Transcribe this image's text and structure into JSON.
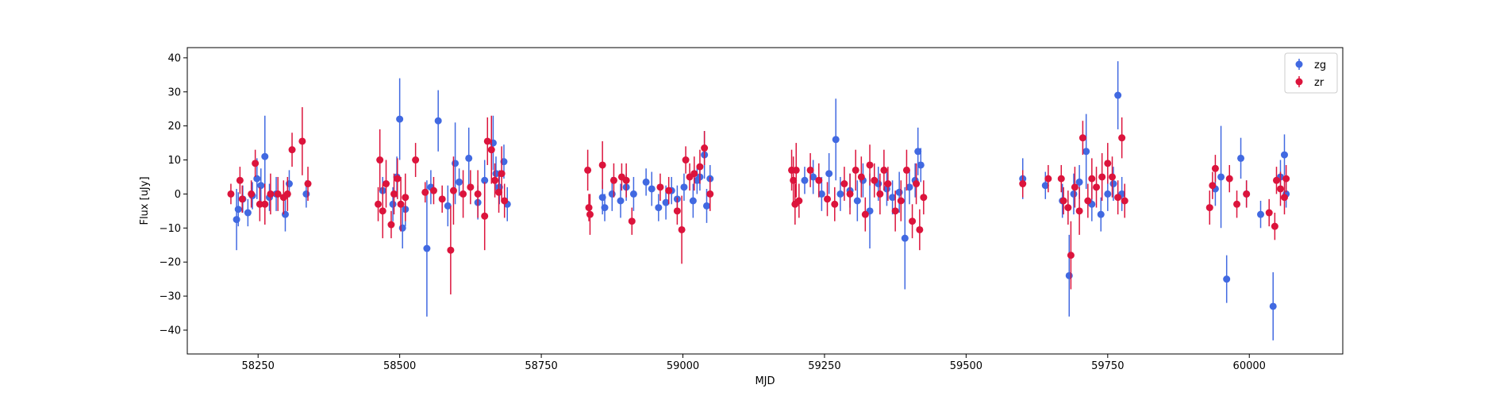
{
  "chart_data": {
    "type": "scatter",
    "title": "",
    "xlabel": "MJD",
    "ylabel": "Flux [uJy]",
    "xlim": [
      58125,
      60165
    ],
    "ylim": [
      -47,
      43
    ],
    "xticks": [
      58250,
      58500,
      58750,
      59000,
      59250,
      59500,
      59750,
      60000
    ],
    "yticks": [
      -40,
      -30,
      -20,
      -10,
      0,
      10,
      20,
      30,
      40
    ],
    "legend": {
      "position": "top-right"
    },
    "grid": false,
    "colors": {
      "zg": "#4169E1",
      "zr": "#DC143C"
    },
    "series": [
      {
        "name": "zg",
        "color": "#4169E1",
        "points": [
          [
            58212,
            -7.5,
            9
          ],
          [
            58215,
            -4.5,
            5
          ],
          [
            58223,
            -1.5,
            4
          ],
          [
            58232,
            -5.5,
            4
          ],
          [
            58240,
            -0.5,
            4
          ],
          [
            58248,
            4.5,
            6
          ],
          [
            58255,
            2.5,
            5
          ],
          [
            58262,
            11,
            12
          ],
          [
            58270,
            -1,
            4
          ],
          [
            58282,
            0,
            5
          ],
          [
            58298,
            -6,
            5
          ],
          [
            58305,
            3,
            4
          ],
          [
            58335,
            0,
            4
          ],
          [
            58470,
            1,
            4
          ],
          [
            58488,
            -3,
            5
          ],
          [
            58495,
            5,
            6
          ],
          [
            58500,
            22,
            12
          ],
          [
            58505,
            -10,
            6
          ],
          [
            58510,
            -4.5,
            5
          ],
          [
            58548,
            -16,
            20
          ],
          [
            58555,
            2,
            5
          ],
          [
            58568,
            21.5,
            9
          ],
          [
            58585,
            -3.5,
            6
          ],
          [
            58598,
            9,
            12
          ],
          [
            58605,
            3.5,
            4
          ],
          [
            58622,
            10.5,
            9
          ],
          [
            58638,
            -2.5,
            5
          ],
          [
            58650,
            4,
            6
          ],
          [
            58665,
            15,
            8
          ],
          [
            58670,
            6,
            5
          ],
          [
            58676,
            2,
            5
          ],
          [
            58684,
            9.5,
            5
          ],
          [
            58690,
            -3,
            5
          ],
          [
            58858,
            -1,
            5
          ],
          [
            58862,
            -4,
            4
          ],
          [
            58875,
            0,
            5
          ],
          [
            58890,
            -2,
            5
          ],
          [
            58900,
            2,
            4
          ],
          [
            58913,
            0,
            5
          ],
          [
            58935,
            3.5,
            4
          ],
          [
            58945,
            1.5,
            5
          ],
          [
            58957,
            -4,
            4
          ],
          [
            58970,
            -2.5,
            5
          ],
          [
            58980,
            1,
            4
          ],
          [
            58990,
            -1.5,
            4
          ],
          [
            59002,
            2,
            4
          ],
          [
            59018,
            -2,
            5
          ],
          [
            59025,
            4,
            4
          ],
          [
            59030,
            5,
            4
          ],
          [
            59038,
            11.5,
            7
          ],
          [
            59042,
            -3.5,
            5
          ],
          [
            59048,
            4.5,
            4
          ],
          [
            59215,
            4,
            4
          ],
          [
            59230,
            5,
            5
          ],
          [
            59245,
            0,
            5
          ],
          [
            59258,
            6,
            6
          ],
          [
            59270,
            16,
            12
          ],
          [
            59278,
            0,
            5
          ],
          [
            59295,
            1,
            5
          ],
          [
            59308,
            -2,
            6
          ],
          [
            59318,
            4,
            5
          ],
          [
            59330,
            -5,
            11
          ],
          [
            59345,
            3,
            5
          ],
          [
            59360,
            1.5,
            5
          ],
          [
            59370,
            -1,
            5
          ],
          [
            59382,
            0.5,
            6
          ],
          [
            59392,
            -13,
            15
          ],
          [
            59400,
            2,
            5
          ],
          [
            59410,
            4,
            5
          ],
          [
            59415,
            12.5,
            7
          ],
          [
            59420,
            8.5,
            5
          ],
          [
            59600,
            4.5,
            6
          ],
          [
            59640,
            2.5,
            4
          ],
          [
            59670,
            -2,
            5
          ],
          [
            59682,
            -24,
            12
          ],
          [
            59690,
            0,
            6
          ],
          [
            59700,
            3.5,
            5
          ],
          [
            59712,
            12.5,
            11
          ],
          [
            59722,
            -3,
            5
          ],
          [
            59738,
            -6,
            5
          ],
          [
            59750,
            0,
            5
          ],
          [
            59760,
            3,
            5
          ],
          [
            59768,
            29,
            10
          ],
          [
            59775,
            0,
            5
          ],
          [
            59940,
            1.5,
            5
          ],
          [
            59950,
            5,
            15
          ],
          [
            59960,
            -25,
            7
          ],
          [
            59985,
            10.5,
            6
          ],
          [
            59995,
            0,
            4
          ],
          [
            60020,
            -6,
            4
          ],
          [
            60042,
            -33,
            10
          ],
          [
            60055,
            5,
            5
          ],
          [
            60062,
            11.5,
            6
          ],
          [
            60065,
            0,
            4
          ]
        ]
      },
      {
        "name": "zr",
        "color": "#DC143C",
        "points": [
          [
            58202,
            0,
            3
          ],
          [
            58218,
            4,
            4
          ],
          [
            58222,
            -1.5,
            4
          ],
          [
            58238,
            0,
            4
          ],
          [
            58245,
            9,
            4
          ],
          [
            58253,
            -3,
            5
          ],
          [
            58262,
            -3,
            6
          ],
          [
            58272,
            0,
            6
          ],
          [
            58285,
            0,
            5
          ],
          [
            58295,
            -1,
            5
          ],
          [
            58302,
            0,
            5
          ],
          [
            58310,
            13,
            5
          ],
          [
            58328,
            15.5,
            10
          ],
          [
            58338,
            3,
            5
          ],
          [
            58462,
            -3,
            5
          ],
          [
            58465,
            10,
            9
          ],
          [
            58470,
            -5,
            8
          ],
          [
            58476,
            3,
            7
          ],
          [
            58485,
            -9,
            4
          ],
          [
            58490,
            0,
            6
          ],
          [
            58496,
            4.5,
            6
          ],
          [
            58502,
            -3,
            8
          ],
          [
            58510,
            -1,
            7
          ],
          [
            58528,
            10,
            5
          ],
          [
            58545,
            0.5,
            3
          ],
          [
            58560,
            1,
            4
          ],
          [
            58575,
            -1.5,
            4
          ],
          [
            58590,
            -16.5,
            13
          ],
          [
            58595,
            1,
            10
          ],
          [
            58612,
            0,
            7
          ],
          [
            58625,
            2,
            5
          ],
          [
            58638,
            0,
            7
          ],
          [
            58650,
            -6.5,
            10
          ],
          [
            58655,
            15.5,
            7
          ],
          [
            58662,
            13,
            10
          ],
          [
            58668,
            4,
            5
          ],
          [
            58675,
            0.5,
            6
          ],
          [
            58680,
            6,
            8
          ],
          [
            58685,
            -2,
            5
          ],
          [
            58832,
            7,
            6
          ],
          [
            58834,
            -4,
            4
          ],
          [
            58836,
            -6,
            6
          ],
          [
            58858,
            8.5,
            7
          ],
          [
            58878,
            4,
            5
          ],
          [
            58892,
            5,
            4
          ],
          [
            58900,
            4,
            5
          ],
          [
            58910,
            -8,
            4
          ],
          [
            58960,
            2,
            4
          ],
          [
            58975,
            1,
            4
          ],
          [
            58990,
            -5,
            4
          ],
          [
            58998,
            -10.5,
            10
          ],
          [
            59005,
            10,
            4
          ],
          [
            59012,
            5,
            4
          ],
          [
            59020,
            6,
            5
          ],
          [
            59030,
            8,
            5
          ],
          [
            59038,
            13.5,
            5
          ],
          [
            59048,
            0,
            5
          ],
          [
            59192,
            7,
            6
          ],
          [
            59195,
            4,
            7
          ],
          [
            59198,
            -3,
            6
          ],
          [
            59200,
            7,
            8
          ],
          [
            59205,
            -2,
            5
          ],
          [
            59225,
            7,
            5
          ],
          [
            59240,
            4,
            5
          ],
          [
            59255,
            -1.5,
            5
          ],
          [
            59268,
            -3,
            5
          ],
          [
            59285,
            3,
            5
          ],
          [
            59295,
            0,
            6
          ],
          [
            59305,
            7,
            6
          ],
          [
            59315,
            5,
            6
          ],
          [
            59322,
            -6,
            5
          ],
          [
            59330,
            8.5,
            6
          ],
          [
            59338,
            4,
            5
          ],
          [
            59348,
            0,
            6
          ],
          [
            59355,
            7,
            6
          ],
          [
            59362,
            3,
            5
          ],
          [
            59375,
            -5,
            6
          ],
          [
            59385,
            -2,
            6
          ],
          [
            59395,
            7,
            6
          ],
          [
            59405,
            -8,
            5
          ],
          [
            59412,
            3,
            6
          ],
          [
            59418,
            -10.5,
            6
          ],
          [
            59425,
            -1,
            5
          ],
          [
            59600,
            3,
            4
          ],
          [
            59645,
            4.5,
            4
          ],
          [
            59668,
            4.5,
            4
          ],
          [
            59672,
            -2,
            4
          ],
          [
            59680,
            -4,
            5
          ],
          [
            59685,
            -18,
            10
          ],
          [
            59692,
            2,
            6
          ],
          [
            59700,
            -5,
            7
          ],
          [
            59706,
            16.5,
            5
          ],
          [
            59715,
            -2,
            5
          ],
          [
            59722,
            4.5,
            6
          ],
          [
            59730,
            2,
            6
          ],
          [
            59740,
            5,
            7
          ],
          [
            59750,
            9,
            6
          ],
          [
            59758,
            5,
            6
          ],
          [
            59768,
            -1,
            5
          ],
          [
            59775,
            16.5,
            6
          ],
          [
            59780,
            -2,
            5
          ],
          [
            59930,
            -4,
            5
          ],
          [
            59935,
            2.5,
            4
          ],
          [
            59940,
            7.5,
            4
          ],
          [
            59965,
            4.5,
            4
          ],
          [
            59978,
            -3,
            4
          ],
          [
            59995,
            0,
            4
          ],
          [
            60035,
            -5.5,
            4
          ],
          [
            60045,
            -9.5,
            4
          ],
          [
            60048,
            4,
            4
          ],
          [
            60055,
            1.5,
            5
          ],
          [
            60062,
            -1,
            5
          ],
          [
            60065,
            4.5,
            4
          ]
        ]
      }
    ]
  }
}
